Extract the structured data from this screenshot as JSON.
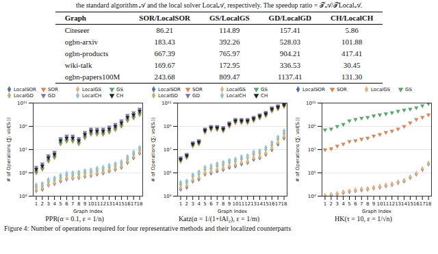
{
  "table_caption": "the standard algorithm 𝒜 and the local solver Local𝒜, respectively. The speedup ratio = 𝒯𝒜/𝒯Local𝒜.",
  "table": {
    "header": [
      "Graph",
      "SOR/LocalSOR",
      "GS/LocalGS",
      "GD/LocalGD",
      "CH/LocalCH"
    ],
    "rows": [
      [
        "Citeseer",
        "86.21",
        "114.89",
        "157.41",
        "5.86"
      ],
      [
        "ogbn-arxiv",
        "183.43",
        "392.26",
        "528.03",
        "101.88"
      ],
      [
        "ogbn-products",
        "667.39",
        "765.97",
        "904.21",
        "417.41"
      ],
      [
        "wiki-talk",
        "169.67",
        "172.95",
        "336.53",
        "30.45"
      ],
      [
        "ogbn-papers100M",
        "243.68",
        "809.47",
        "1137.41",
        "131.30"
      ]
    ]
  },
  "chart_data": [
    {
      "type": "scatter",
      "title": "PPR(α = 0.1, ε = 1/n)",
      "x_label": "Graph Index",
      "y_label": "# of Operations (∑ₜ vol(Sₜ))",
      "log": "y",
      "grid": true,
      "legend": "top",
      "x": [
        1,
        2,
        3,
        4,
        5,
        6,
        7,
        8,
        9,
        10,
        11,
        12,
        13,
        14,
        15,
        16,
        17,
        18
      ],
      "xlim": [
        0.5,
        18.5
      ],
      "xticks": [
        1,
        2,
        3,
        4,
        5,
        6,
        7,
        8,
        9,
        10,
        11,
        12,
        13,
        14,
        15,
        16,
        17,
        18
      ],
      "ylim": [
        1000,
        100000000000
      ],
      "yticks": [
        {
          "value": 1000,
          "label": "10³"
        },
        {
          "value": 100000,
          "label": "10⁵"
        },
        {
          "value": 10000000,
          "label": "10⁷"
        },
        {
          "value": 1000000000,
          "label": "10⁹"
        },
        {
          "value": 100000000000,
          "label": "10¹¹"
        }
      ],
      "series": [
        {
          "name": "LocalSOR",
          "color": "#4c72b0",
          "marker": "diamond",
          "values": [
            3000,
            4000,
            9000,
            12000,
            20000,
            30000,
            35000,
            40000,
            50000,
            60000,
            80000,
            100000,
            150000,
            200000,
            300000,
            800000,
            2000000,
            5000000
          ]
        },
        {
          "name": "SOR",
          "color": "#dd8452",
          "marker": "triangle-down",
          "values": [
            100000,
            200000,
            1000000,
            2000000,
            30000000,
            50000000,
            50000000,
            30000000,
            100000000,
            200000000,
            200000000,
            200000000,
            300000000,
            500000000,
            1000000000,
            3000000000,
            5000000000,
            10000000000
          ]
        },
        {
          "name": "LocalGS",
          "color": "#e8b27a",
          "marker": "diamond",
          "values": [
            3500,
            5000,
            10000,
            14000,
            24000,
            36000,
            40000,
            48000,
            60000,
            70000,
            95000,
            120000,
            180000,
            240000,
            360000,
            1000000,
            2500000,
            6000000
          ]
        },
        {
          "name": "GS",
          "color": "#55a868",
          "marker": "triangle-down",
          "values": [
            130000,
            260000,
            1300000,
            2600000,
            40000000,
            65000000,
            65000000,
            40000000,
            130000000,
            260000000,
            260000000,
            260000000,
            400000000,
            650000000,
            1300000000,
            4000000000,
            6500000000,
            13000000000
          ]
        },
        {
          "name": "LocalGD",
          "color": "#b8b86b",
          "marker": "diamond",
          "values": [
            6000,
            8000,
            18000,
            25000,
            40000,
            60000,
            70000,
            80000,
            100000,
            120000,
            160000,
            200000,
            300000,
            400000,
            600000,
            1600000,
            4000000,
            10000000
          ]
        },
        {
          "name": "GD",
          "color": "#8172b3",
          "marker": "triangle-down",
          "values": [
            300000,
            600000,
            3000000,
            6000000,
            90000000,
            150000000,
            150000000,
            90000000,
            300000000,
            600000000,
            600000000,
            600000000,
            900000000,
            1500000000,
            3000000000,
            9000000000,
            15000000000,
            30000000000
          ]
        },
        {
          "name": "LocalCH",
          "color": "#8fc1e3",
          "marker": "diamond",
          "values": [
            9000,
            12000,
            27000,
            36000,
            60000,
            90000,
            100000,
            120000,
            150000,
            180000,
            240000,
            300000,
            450000,
            600000,
            900000,
            2400000,
            6000000,
            15000000
          ]
        },
        {
          "name": "CH",
          "color": "#222222",
          "marker": "triangle-down",
          "values": [
            200000,
            400000,
            2000000,
            4000000,
            60000000,
            100000000,
            100000000,
            60000000,
            200000000,
            400000000,
            400000000,
            400000000,
            600000000,
            1000000000,
            2000000000,
            6000000000,
            10000000000,
            20000000000
          ]
        }
      ]
    },
    {
      "type": "scatter",
      "title": "Katz(α = 1/(1+‖A‖₂), ε = 1/m)",
      "x_label": "Graph Index",
      "y_label": "# of Operations (∑ₜ vol(Sₜ))",
      "log": "y",
      "grid": true,
      "legend": "top",
      "x": [
        1,
        2,
        3,
        4,
        5,
        6,
        7,
        8,
        9,
        10,
        11,
        12,
        13,
        14,
        15,
        16,
        17,
        18
      ],
      "xlim": [
        0.5,
        18.5
      ],
      "xticks": [
        1,
        2,
        3,
        4,
        5,
        6,
        7,
        8,
        9,
        10,
        11,
        12,
        13,
        14,
        15,
        16,
        17,
        18
      ],
      "ylim": [
        1000,
        100000000000
      ],
      "yticks": [
        {
          "value": 1000,
          "label": "10³"
        },
        {
          "value": 100000,
          "label": "10⁵"
        },
        {
          "value": 10000000,
          "label": "10⁷"
        },
        {
          "value": 1000000000,
          "label": "10⁹"
        },
        {
          "value": 100000000000,
          "label": "10¹¹"
        }
      ],
      "series": [
        {
          "name": "LocalSOR",
          "color": "#4c72b0",
          "marker": "diamond",
          "values": [
            4000,
            6000,
            20000,
            30000,
            80000,
            100000,
            150000,
            200000,
            300000,
            400000,
            600000,
            800000,
            1500000,
            2000000,
            4000000,
            10000000,
            30000000,
            100000000
          ]
        },
        {
          "name": "SOR",
          "color": "#dd8452",
          "marker": "triangle-down",
          "values": [
            1000000,
            2000000,
            20000000,
            30000000,
            300000000,
            500000000,
            500000000,
            400000000,
            1000000000,
            2000000000,
            2000000000,
            2000000000,
            3000000000,
            5000000000,
            8000000000,
            20000000000,
            30000000000,
            50000000000
          ]
        },
        {
          "name": "LocalGS",
          "color": "#e8b27a",
          "marker": "diamond",
          "values": [
            5000,
            8000,
            25000,
            40000,
            100000,
            130000,
            200000,
            260000,
            400000,
            520000,
            800000,
            1000000,
            2000000,
            2600000,
            5000000,
            13000000,
            40000000,
            130000000
          ]
        },
        {
          "name": "GS",
          "color": "#55a868",
          "marker": "triangle-down",
          "values": [
            1200000,
            2500000,
            25000000,
            40000000,
            400000000,
            650000000,
            650000000,
            500000000,
            1300000000,
            2500000000,
            2500000000,
            2500000000,
            4000000000,
            6500000000,
            10000000000,
            25000000000,
            40000000000,
            60000000000
          ]
        },
        {
          "name": "LocalGD",
          "color": "#b8b86b",
          "marker": "diamond",
          "values": [
            10000,
            15000,
            50000,
            80000,
            200000,
            250000,
            400000,
            500000,
            800000,
            1000000,
            1600000,
            2000000,
            4000000,
            5000000,
            10000000,
            25000000,
            80000000,
            250000000
          ]
        },
        {
          "name": "GD",
          "color": "#8172b3",
          "marker": "triangle-down",
          "values": [
            2000000,
            4000000,
            40000000,
            60000000,
            600000000,
            1000000000,
            1000000000,
            800000000,
            2000000000,
            4000000000,
            4000000000,
            4000000000,
            6000000000,
            10000000000,
            16000000000,
            40000000000,
            60000000000,
            90000000000
          ]
        },
        {
          "name": "LocalCH",
          "color": "#8fc1e3",
          "marker": "diamond",
          "values": [
            15000,
            20000,
            70000,
            120000,
            300000,
            400000,
            600000,
            800000,
            1200000,
            1500000,
            2400000,
            3000000,
            6000000,
            8000000,
            15000000,
            40000000,
            120000000,
            400000000
          ]
        },
        {
          "name": "CH",
          "color": "#222222",
          "marker": "triangle-down",
          "values": [
            1500000,
            3000000,
            30000000,
            45000000,
            450000000,
            750000000,
            750000000,
            600000000,
            1500000000,
            3000000000,
            3000000000,
            3000000000,
            4500000000,
            7500000000,
            12000000000,
            30000000000,
            45000000000,
            70000000000
          ]
        }
      ]
    },
    {
      "type": "scatter",
      "title": "HK(τ = 10, ε = 1/√n)",
      "x_label": "Graph Index",
      "y_label": "# of Operations (∑ₜ vol(Sₜ))",
      "log": "y",
      "grid": true,
      "legend": "top",
      "x": [
        1,
        2,
        3,
        4,
        5,
        6,
        7,
        8,
        9,
        10,
        11,
        12,
        13,
        14,
        15,
        16,
        17,
        18
      ],
      "xlim": [
        0.5,
        18.5
      ],
      "xticks": [
        1,
        2,
        3,
        4,
        5,
        6,
        7,
        8,
        9,
        10,
        11,
        12,
        13,
        14,
        15,
        16,
        17,
        18
      ],
      "ylim": [
        1000,
        100000000000
      ],
      "yticks": [
        {
          "value": 1000,
          "label": "10³"
        },
        {
          "value": 100000,
          "label": "10⁵"
        },
        {
          "value": 10000000,
          "label": "10⁷"
        },
        {
          "value": 1000000000,
          "label": "10⁹"
        },
        {
          "value": 100000000000,
          "label": "10¹¹"
        }
      ],
      "series": [
        {
          "name": "LocalSOR",
          "color": "#4c72b0",
          "marker": "diamond",
          "values": [
            1000,
            1200,
            1500,
            2000,
            2500,
            3000,
            3500,
            4000,
            5000,
            6000,
            8000,
            10000,
            15000,
            20000,
            40000,
            80000,
            200000,
            600000
          ]
        },
        {
          "name": "SOR",
          "color": "#dd8452",
          "marker": "triangle-down",
          "values": [
            10000000,
            12000000,
            20000000,
            30000000,
            50000000,
            60000000,
            80000000,
            100000000,
            150000000,
            200000000,
            300000000,
            400000000,
            600000000,
            1000000000,
            2000000000,
            4000000000,
            6000000000,
            10000000000
          ]
        },
        {
          "name": "LocalGS",
          "color": "#e8b27a",
          "marker": "diamond",
          "values": [
            1100,
            1400,
            1700,
            2300,
            2800,
            3400,
            4000,
            4500,
            5600,
            7000,
            9000,
            11000,
            17000,
            23000,
            45000,
            90000,
            230000,
            700000
          ]
        },
        {
          "name": "GS",
          "color": "#55a868",
          "marker": "triangle-down",
          "values": [
            500000000,
            600000000,
            1000000000,
            1500000000,
            3000000000,
            4000000000,
            5000000000,
            6000000000,
            8000000000,
            10000000000,
            12000000000,
            15000000000,
            20000000000,
            25000000000,
            30000000000,
            40000000000,
            60000000000,
            90000000000
          ]
        }
      ]
    }
  ],
  "figure_caption": "Figure 4: Number of operations required for four representative methods and their localized counterparts"
}
